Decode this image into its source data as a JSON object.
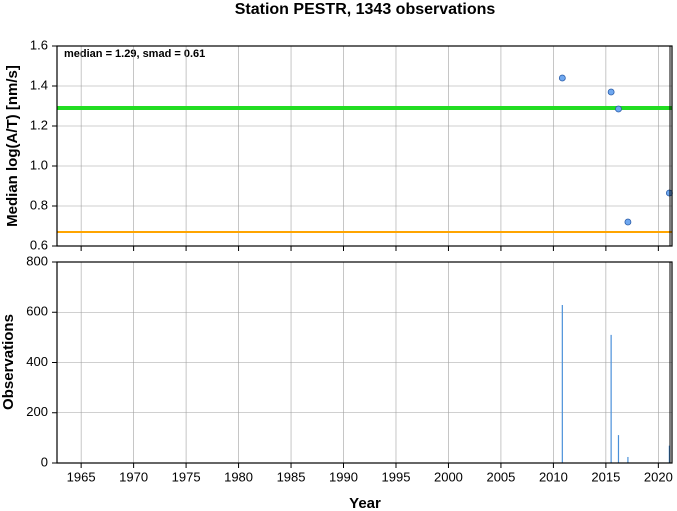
{
  "chart_data": [
    {
      "type": "scatter",
      "title": "Station PESTR, 1343 observations",
      "annotation": "median = 1.29, smad = 0.61",
      "ylabel": "Median log(A/T) [nm/s]",
      "x": [
        2010.85,
        2015.5,
        2016.2,
        2017.1,
        2021.05
      ],
      "values": [
        1.44,
        1.37,
        1.285,
        0.72,
        0.865
      ],
      "color": "#6fa8f0",
      "reference_lines": [
        {
          "value": 1.29,
          "color": "#22dd22"
        },
        {
          "value": 0.67,
          "color": "#ffa500"
        }
      ],
      "xlim": [
        1962.7,
        2021.3
      ],
      "xticks": [
        1965,
        1970,
        1975,
        1980,
        1985,
        1990,
        1995,
        2000,
        2005,
        2010,
        2015,
        2020
      ],
      "ylim": [
        0.6,
        1.6
      ],
      "yticks": [
        0.6,
        0.8,
        {
          "value": 1,
          "label": "1.0"
        },
        1.2,
        1.4,
        1.6
      ],
      "grid": true
    },
    {
      "type": "bar",
      "ylabel": "Observations",
      "xlabel": "Year",
      "x": [
        2010.85,
        2015.5,
        2016.2,
        2017.1,
        2021.05
      ],
      "values": [
        629,
        510,
        111,
        24,
        69
      ],
      "color": "#4a90d9",
      "xlim": [
        1962.7,
        2021.3
      ],
      "xticks": [
        1965,
        1970,
        1975,
        1980,
        1985,
        1990,
        1995,
        2000,
        2005,
        2010,
        2015,
        2020
      ],
      "ylim": [
        0,
        800
      ],
      "yticks": [
        0,
        200,
        400,
        600,
        800
      ],
      "grid": true
    }
  ]
}
